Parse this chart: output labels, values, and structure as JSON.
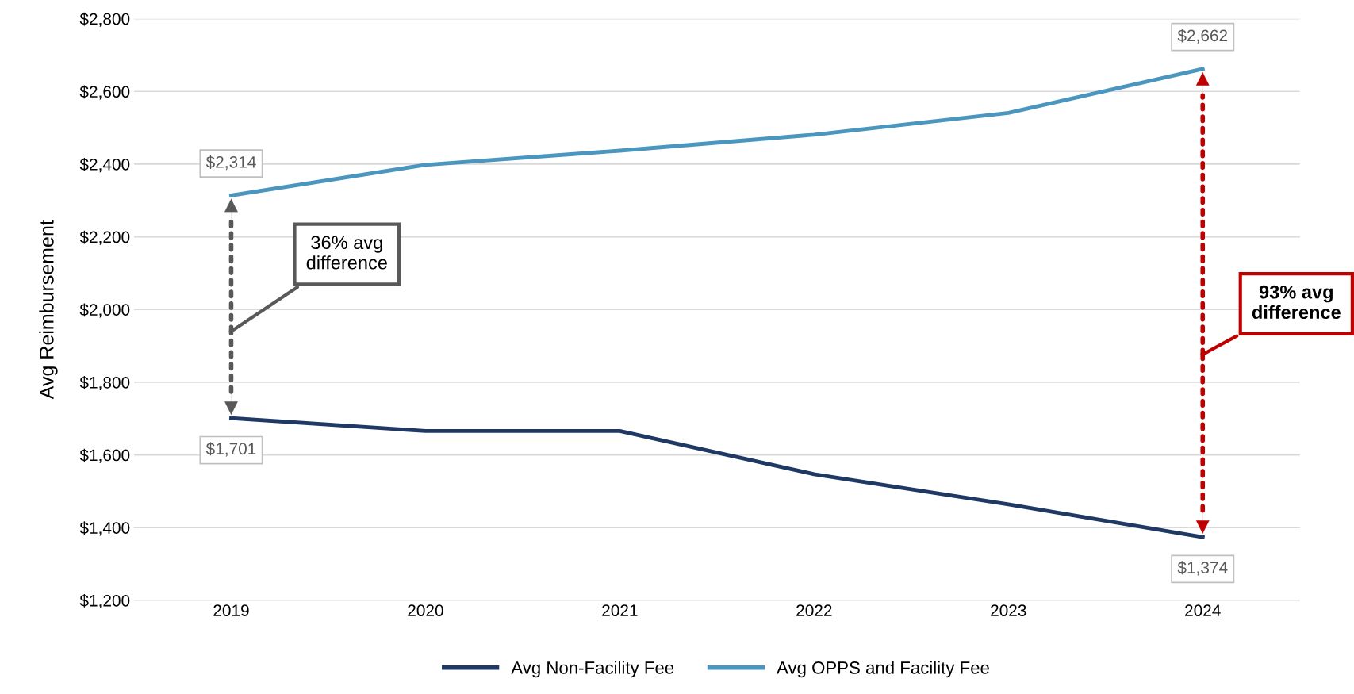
{
  "chart_data": {
    "type": "line",
    "ylabel": "Avg Reimbursement",
    "categories": [
      "2019",
      "2020",
      "2021",
      "2022",
      "2023",
      "2024"
    ],
    "series": [
      {
        "name": "Avg Non-Facility Fee",
        "color": "#1f3864",
        "values": [
          1701,
          1666,
          1666,
          1547,
          1464,
          1374
        ],
        "value_labels": [
          "$1,701",
          null,
          null,
          null,
          null,
          "$1,374"
        ]
      },
      {
        "name": "Avg OPPS and Facility Fee",
        "color": "#4a96bf",
        "values": [
          2314,
          2398,
          2437,
          2481,
          2541,
          2662
        ],
        "value_labels": [
          "$2,314",
          null,
          null,
          null,
          null,
          "$2,662"
        ]
      }
    ],
    "ylim": [
      1200,
      2800
    ],
    "yticks": [
      {
        "value": 1200,
        "label": "$1,200"
      },
      {
        "value": 1400,
        "label": "$1,400"
      },
      {
        "value": 1600,
        "label": "$1,600"
      },
      {
        "value": 1800,
        "label": "$1,800"
      },
      {
        "value": 2000,
        "label": "$2,000"
      },
      {
        "value": 2200,
        "label": "$2,200"
      },
      {
        "value": 2400,
        "label": "$2,400"
      },
      {
        "value": 2600,
        "label": "$2,600"
      },
      {
        "value": 2800,
        "label": "$2,800"
      }
    ],
    "grid": "y",
    "legend": "bottom",
    "marker": "none",
    "line_style": "solid",
    "annotations": [
      "36% avg\ndifference",
      "93% avg\ndifference"
    ]
  }
}
